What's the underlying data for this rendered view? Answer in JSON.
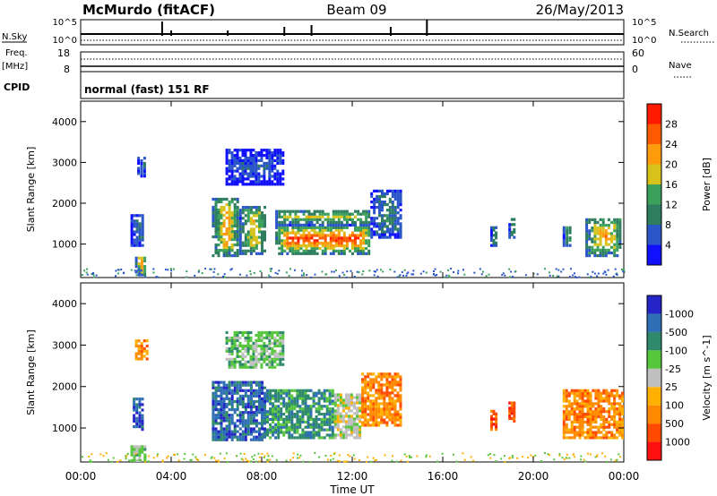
{
  "header": {
    "station": "McMurdo (fitACF)",
    "beam": "Beam 09",
    "date": "26/May/2013"
  },
  "aux_panels": {
    "nsky_label": "N.Sky",
    "nsky_ticks": [
      "10^5",
      "10^0"
    ],
    "nsearch_label": "N.Search",
    "nsearch_ticks": [
      "10^5",
      "10^0"
    ],
    "freq_label": "Freq.",
    "freq_unit": "[MHz]",
    "freq_ticks": [
      "18",
      "8"
    ],
    "nave_label": "Nave",
    "nave_ticks": [
      "60",
      "0"
    ],
    "cpid_label": "CPID",
    "cpid_text": "normal (fast) 151 RF"
  },
  "chart_data": [
    {
      "type": "heatmap",
      "title": "",
      "xlabel": "Time UT",
      "ylabel": "Slant Range [km]",
      "x_ticks": [
        "00:00",
        "04:00",
        "08:00",
        "12:00",
        "16:00",
        "20:00",
        "00:00"
      ],
      "xlim_hours": [
        0,
        24
      ],
      "y_ticks": [
        "1000",
        "2000",
        "3000",
        "4000"
      ],
      "ylim": [
        180,
        4500
      ],
      "colorbar": {
        "label": "Power [dB]",
        "ticks": [
          "4",
          "8",
          "12",
          "16",
          "20",
          "24",
          "28"
        ],
        "range": [
          0,
          32
        ],
        "colors": [
          "#1010ff",
          "#2a56c8",
          "#2e7d5e",
          "#3aa05a",
          "#d7c21a",
          "#ff9a0a",
          "#ff5a00",
          "#ff1a00"
        ]
      },
      "regions": [
        {
          "t0": 2.4,
          "t1": 2.9,
          "r0": 280,
          "r1": 760,
          "level": 20
        },
        {
          "t0": 2.2,
          "t1": 2.8,
          "r0": 1000,
          "r1": 1800,
          "level": 9
        },
        {
          "t0": 2.5,
          "t1": 2.9,
          "r0": 2700,
          "r1": 3200,
          "level": 7
        },
        {
          "t0": 5.8,
          "t1": 7.0,
          "r0": 750,
          "r1": 2200,
          "level": 20
        },
        {
          "t0": 7.0,
          "t1": 8.2,
          "r0": 800,
          "r1": 2000,
          "level": 18
        },
        {
          "t0": 8.6,
          "t1": 12.8,
          "r0": 800,
          "r1": 1500,
          "level": 26
        },
        {
          "t0": 8.6,
          "t1": 12.8,
          "r0": 1500,
          "r1": 1900,
          "level": 16
        },
        {
          "t0": 12.8,
          "t1": 14.2,
          "r0": 1200,
          "r1": 2400,
          "level": 10
        },
        {
          "t0": 6.4,
          "t1": 9.0,
          "r0": 2500,
          "r1": 3400,
          "level": 6
        },
        {
          "t0": 18.1,
          "t1": 18.4,
          "r0": 1000,
          "r1": 1500,
          "level": 12
        },
        {
          "t0": 18.9,
          "t1": 19.2,
          "r0": 1200,
          "r1": 1700,
          "level": 12
        },
        {
          "t0": 21.3,
          "t1": 21.7,
          "r0": 1000,
          "r1": 1500,
          "level": 13
        },
        {
          "t0": 22.3,
          "t1": 23.9,
          "r0": 750,
          "r1": 1700,
          "level": 22
        }
      ]
    },
    {
      "type": "heatmap",
      "title": "",
      "xlabel": "Time UT",
      "ylabel": "Slant Range [km]",
      "x_ticks": [
        "00:00",
        "04:00",
        "08:00",
        "12:00",
        "16:00",
        "20:00",
        "00:00"
      ],
      "xlim_hours": [
        0,
        24
      ],
      "y_ticks": [
        "1000",
        "2000",
        "3000",
        "4000"
      ],
      "ylim": [
        180,
        4500
      ],
      "colorbar": {
        "label": "Velocity [m s^-1]",
        "ticks": [
          "1000",
          "500",
          "100",
          "25",
          "-25",
          "-100",
          "-500",
          "-1000"
        ],
        "colors": [
          "#2424c8",
          "#2e6eb4",
          "#2e8a6a",
          "#56c63c",
          "#c0c0c0",
          "#ffb000",
          "#ff8a00",
          "#ff4a00",
          "#ff1010"
        ]
      },
      "regions": [
        {
          "t0": 2.2,
          "t1": 2.9,
          "r0": 250,
          "r1": 650,
          "level": 3
        },
        {
          "t0": 2.3,
          "t1": 2.8,
          "r0": 1000,
          "r1": 1800,
          "level": 1
        },
        {
          "t0": 2.4,
          "t1": 3.0,
          "r0": 2700,
          "r1": 3200,
          "level": 6
        },
        {
          "t0": 5.8,
          "t1": 8.2,
          "r0": 750,
          "r1": 2200,
          "level": 1
        },
        {
          "t0": 8.2,
          "t1": 11.2,
          "r0": 800,
          "r1": 2000,
          "level": 2
        },
        {
          "t0": 11.2,
          "t1": 12.4,
          "r0": 800,
          "r1": 1900,
          "level": 4
        },
        {
          "t0": 12.4,
          "t1": 14.2,
          "r0": 1100,
          "r1": 2400,
          "level": 6
        },
        {
          "t0": 6.4,
          "t1": 9.0,
          "r0": 2500,
          "r1": 3400,
          "level": 3
        },
        {
          "t0": 18.1,
          "t1": 18.4,
          "r0": 1000,
          "r1": 1500,
          "level": 7
        },
        {
          "t0": 18.9,
          "t1": 19.2,
          "r0": 1200,
          "r1": 1700,
          "level": 7
        },
        {
          "t0": 21.3,
          "t1": 24.0,
          "r0": 800,
          "r1": 2000,
          "level": 6
        }
      ]
    }
  ]
}
